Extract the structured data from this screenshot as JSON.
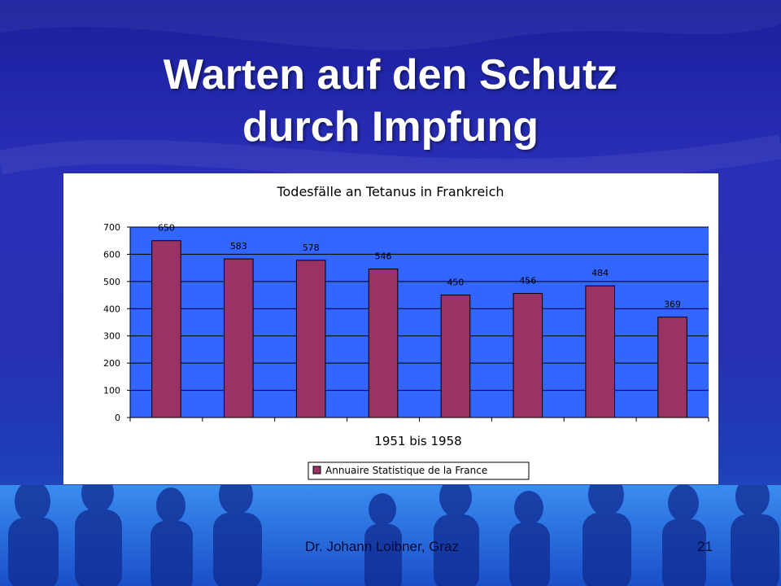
{
  "slide": {
    "title_line1": "Warten auf den Schutz",
    "title_line2": "durch Impfung",
    "footer_author": "Dr. Johann Loibner, Graz",
    "page_number": "21"
  },
  "colors": {
    "plot_background": "#3366ff",
    "bar": "#993366",
    "slide_background": "#2129a8"
  },
  "chart_data": {
    "type": "bar",
    "title": "Todesfälle an Tetanus in Frankreich",
    "xlabel": "1951 bis 1958",
    "ylabel": "",
    "ylim": [
      0,
      700
    ],
    "yticks": [
      0,
      100,
      200,
      300,
      400,
      500,
      600,
      700
    ],
    "grid": true,
    "legend_position": "bottom",
    "series": [
      {
        "name": "Annuaire Statistique de la France",
        "values": [
          650,
          583,
          578,
          546,
          450,
          456,
          484,
          369
        ]
      }
    ]
  }
}
